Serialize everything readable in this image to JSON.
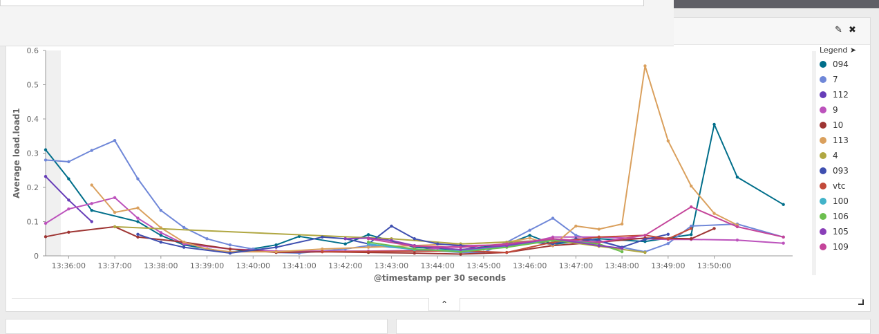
{
  "header": {
    "edit_icon": "pencil-icon",
    "close_icon": "close-icon"
  },
  "legend": {
    "title": "Legend",
    "toggle_icon": "circle-arrow-right-icon"
  },
  "footer": {
    "toggle_icon": "chevron-up-icon"
  },
  "chart_data": {
    "type": "line",
    "title": "",
    "xlabel": "@timestamp per 30 seconds",
    "ylabel": "Average load.load1",
    "ylim": [
      0,
      0.6
    ],
    "yticks": [
      "0",
      "0.1",
      "0.2",
      "0.3",
      "0.4",
      "0.5",
      "0.6"
    ],
    "xticks": [
      {
        "t": 0.5,
        "label": "13:36:00"
      },
      {
        "t": 1.5,
        "label": "13:37:00"
      },
      {
        "t": 2.5,
        "label": "13:38:00"
      },
      {
        "t": 3.5,
        "label": "13:39:00"
      },
      {
        "t": 4.5,
        "label": "13:40:00"
      },
      {
        "t": 5.5,
        "label": "13:41:00"
      },
      {
        "t": 6.5,
        "label": "13:42:00"
      },
      {
        "t": 7.5,
        "label": "13:43:00"
      },
      {
        "t": 8.5,
        "label": "13:44:00"
      },
      {
        "t": 9.5,
        "label": "13:45:00"
      },
      {
        "t": 10.5,
        "label": "13:46:00"
      },
      {
        "t": 11.5,
        "label": "13:47:00"
      },
      {
        "t": 12.5,
        "label": "13:48:00"
      },
      {
        "t": 13.5,
        "label": "13:49:00"
      },
      {
        "t": 14.5,
        "label": "13:50:00"
      }
    ],
    "grid": false,
    "legend_position": "right",
    "series": [
      {
        "name": "094",
        "color": "#006e8a",
        "points": [
          [
            0.0,
            0.31
          ],
          [
            0.5,
            0.225
          ],
          [
            1.0,
            0.133
          ],
          [
            2.0,
            0.1
          ],
          [
            2.5,
            0.06
          ],
          [
            3.0,
            0.032
          ],
          [
            4.0,
            0.01
          ],
          [
            5.0,
            0.032
          ],
          [
            5.5,
            0.057
          ],
          [
            6.5,
            0.035
          ],
          [
            7.0,
            0.062
          ],
          [
            8.0,
            0.025
          ],
          [
            9.0,
            0.018
          ],
          [
            10.0,
            0.034
          ],
          [
            10.5,
            0.06
          ],
          [
            11.0,
            0.034
          ],
          [
            12.0,
            0.05
          ],
          [
            13.0,
            0.042
          ],
          [
            14.0,
            0.062
          ],
          [
            14.5,
            0.384
          ],
          [
            15.0,
            0.23
          ],
          [
            16.0,
            0.15
          ]
        ]
      },
      {
        "name": "7",
        "color": "#6f87d8",
        "points": [
          [
            0.0,
            0.28
          ],
          [
            0.5,
            0.275
          ],
          [
            1.0,
            0.308
          ],
          [
            1.5,
            0.337
          ],
          [
            2.0,
            0.225
          ],
          [
            2.5,
            0.133
          ],
          [
            3.0,
            0.083
          ],
          [
            3.5,
            0.05
          ],
          [
            4.0,
            0.032
          ],
          [
            4.5,
            0.02
          ],
          [
            5.0,
            0.01
          ],
          [
            5.5,
            0.008
          ],
          [
            6.5,
            0.02
          ],
          [
            7.0,
            0.03
          ],
          [
            8.0,
            0.02
          ],
          [
            9.0,
            0.01
          ],
          [
            9.5,
            0.01
          ],
          [
            10.0,
            0.04
          ],
          [
            10.5,
            0.075
          ],
          [
            11.0,
            0.11
          ],
          [
            11.5,
            0.06
          ],
          [
            12.5,
            0.025
          ],
          [
            13.0,
            0.012
          ],
          [
            13.5,
            0.036
          ],
          [
            14.0,
            0.087
          ],
          [
            15.0,
            0.093
          ],
          [
            16.0,
            0.055
          ]
        ]
      },
      {
        "name": "112",
        "color": "#663db8",
        "points": [
          [
            0.0,
            0.232
          ],
          [
            0.5,
            0.163
          ],
          [
            1.0,
            0.1
          ]
        ]
      },
      {
        "name": "9",
        "color": "#bc52bc",
        "points": [
          [
            0.0,
            0.095
          ],
          [
            0.5,
            0.137
          ],
          [
            1.0,
            0.153
          ],
          [
            1.5,
            0.17
          ],
          [
            2.0,
            0.11
          ],
          [
            2.5,
            0.068
          ],
          [
            3.0,
            0.035
          ],
          [
            4.0,
            0.02
          ],
          [
            5.0,
            0.014
          ],
          [
            6.0,
            0.014
          ],
          [
            7.0,
            0.014
          ],
          [
            8.0,
            0.016
          ],
          [
            8.5,
            0.022
          ],
          [
            9.0,
            0.03
          ],
          [
            10.0,
            0.032
          ],
          [
            10.5,
            0.04
          ],
          [
            11.0,
            0.055
          ],
          [
            12.0,
            0.055
          ],
          [
            13.0,
            0.05
          ],
          [
            13.5,
            0.048
          ],
          [
            14.0,
            0.048
          ],
          [
            15.0,
            0.046
          ],
          [
            16.0,
            0.037
          ]
        ]
      },
      {
        "name": "10",
        "color": "#9e3533",
        "points": [
          [
            0.0,
            0.056
          ],
          [
            0.5,
            0.069
          ],
          [
            1.5,
            0.085
          ],
          [
            2.0,
            0.055
          ],
          [
            3.0,
            0.04
          ],
          [
            4.0,
            0.02
          ],
          [
            5.0,
            0.01
          ],
          [
            6.0,
            0.012
          ],
          [
            7.0,
            0.01
          ],
          [
            8.0,
            0.008
          ],
          [
            9.0,
            0.005
          ],
          [
            10.0,
            0.01
          ],
          [
            11.0,
            0.03
          ],
          [
            12.0,
            0.04
          ],
          [
            13.0,
            0.052
          ],
          [
            14.0,
            0.05
          ],
          [
            14.5,
            0.08
          ]
        ]
      },
      {
        "name": "113",
        "color": "#daa05d",
        "points": [
          [
            1.0,
            0.207
          ],
          [
            1.5,
            0.127
          ],
          [
            2.0,
            0.14
          ],
          [
            2.5,
            0.082
          ],
          [
            3.0,
            0.04
          ],
          [
            3.5,
            0.02
          ],
          [
            4.0,
            0.012
          ],
          [
            5.0,
            0.012
          ],
          [
            6.0,
            0.02
          ],
          [
            7.0,
            0.025
          ],
          [
            8.0,
            0.03
          ],
          [
            9.0,
            0.035
          ],
          [
            10.0,
            0.04
          ],
          [
            10.5,
            0.052
          ],
          [
            11.0,
            0.03
          ],
          [
            11.5,
            0.087
          ],
          [
            12.0,
            0.078
          ],
          [
            12.5,
            0.093
          ],
          [
            13.0,
            0.555
          ],
          [
            13.5,
            0.336
          ],
          [
            14.0,
            0.204
          ],
          [
            14.5,
            0.124
          ],
          [
            15.0,
            0.09
          ]
        ]
      },
      {
        "name": "4",
        "color": "#b0a742",
        "points": [
          [
            1.5,
            0.085
          ],
          [
            7.5,
            0.05
          ],
          [
            9.0,
            0.035
          ],
          [
            11.0,
            0.046
          ],
          [
            12.0,
            0.028
          ],
          [
            13.0,
            0.01
          ]
        ]
      },
      {
        "name": "093",
        "color": "#3f4fb0",
        "points": [
          [
            2.0,
            0.063
          ],
          [
            2.5,
            0.04
          ],
          [
            3.0,
            0.025
          ],
          [
            4.0,
            0.008
          ],
          [
            5.0,
            0.025
          ],
          [
            6.0,
            0.055
          ],
          [
            6.5,
            0.05
          ],
          [
            7.0,
            0.035
          ],
          [
            7.5,
            0.087
          ],
          [
            8.0,
            0.05
          ],
          [
            8.5,
            0.035
          ],
          [
            9.0,
            0.03
          ],
          [
            9.5,
            0.02
          ],
          [
            10.0,
            0.03
          ],
          [
            10.5,
            0.04
          ],
          [
            11.0,
            0.035
          ],
          [
            11.5,
            0.05
          ],
          [
            12.0,
            0.045
          ],
          [
            12.5,
            0.025
          ],
          [
            13.0,
            0.048
          ],
          [
            13.5,
            0.063
          ]
        ]
      },
      {
        "name": "vtc",
        "color": "#c24a3a",
        "points": [
          [
            6.0,
            0.012
          ],
          [
            9.0,
            0.015
          ],
          [
            10.0,
            0.01
          ],
          [
            11.0,
            0.04
          ],
          [
            12.0,
            0.055
          ],
          [
            13.0,
            0.06
          ],
          [
            13.5,
            0.05
          ],
          [
            14.0,
            0.08
          ]
        ]
      },
      {
        "name": "100",
        "color": "#42b3c9",
        "points": [
          [
            7.0,
            0.035
          ],
          [
            8.0,
            0.018
          ],
          [
            9.0,
            0.015
          ],
          [
            10.0,
            0.028
          ],
          [
            11.0,
            0.045
          ],
          [
            12.0,
            0.04
          ]
        ]
      },
      {
        "name": "106",
        "color": "#6cbf4f",
        "points": [
          [
            7.0,
            0.04
          ],
          [
            8.0,
            0.02
          ],
          [
            9.0,
            0.012
          ],
          [
            10.0,
            0.025
          ],
          [
            11.0,
            0.045
          ],
          [
            12.0,
            0.035
          ],
          [
            12.5,
            0.012
          ]
        ]
      },
      {
        "name": "105",
        "color": "#8a3fb8",
        "points": [
          [
            6.5,
            0.05
          ],
          [
            7.0,
            0.052
          ],
          [
            7.5,
            0.045
          ],
          [
            8.0,
            0.03
          ],
          [
            9.0,
            0.018
          ],
          [
            10.0,
            0.03
          ],
          [
            11.0,
            0.05
          ],
          [
            12.0,
            0.03
          ],
          [
            12.5,
            0.022
          ]
        ]
      },
      {
        "name": "109",
        "color": "#c4449a",
        "points": [
          [
            7.0,
            0.05
          ],
          [
            8.0,
            0.028
          ],
          [
            9.0,
            0.025
          ],
          [
            10.0,
            0.035
          ],
          [
            11.0,
            0.05
          ],
          [
            12.0,
            0.04
          ],
          [
            13.0,
            0.06
          ],
          [
            14.0,
            0.143
          ],
          [
            15.0,
            0.085
          ],
          [
            16.0,
            0.055
          ]
        ]
      }
    ]
  }
}
